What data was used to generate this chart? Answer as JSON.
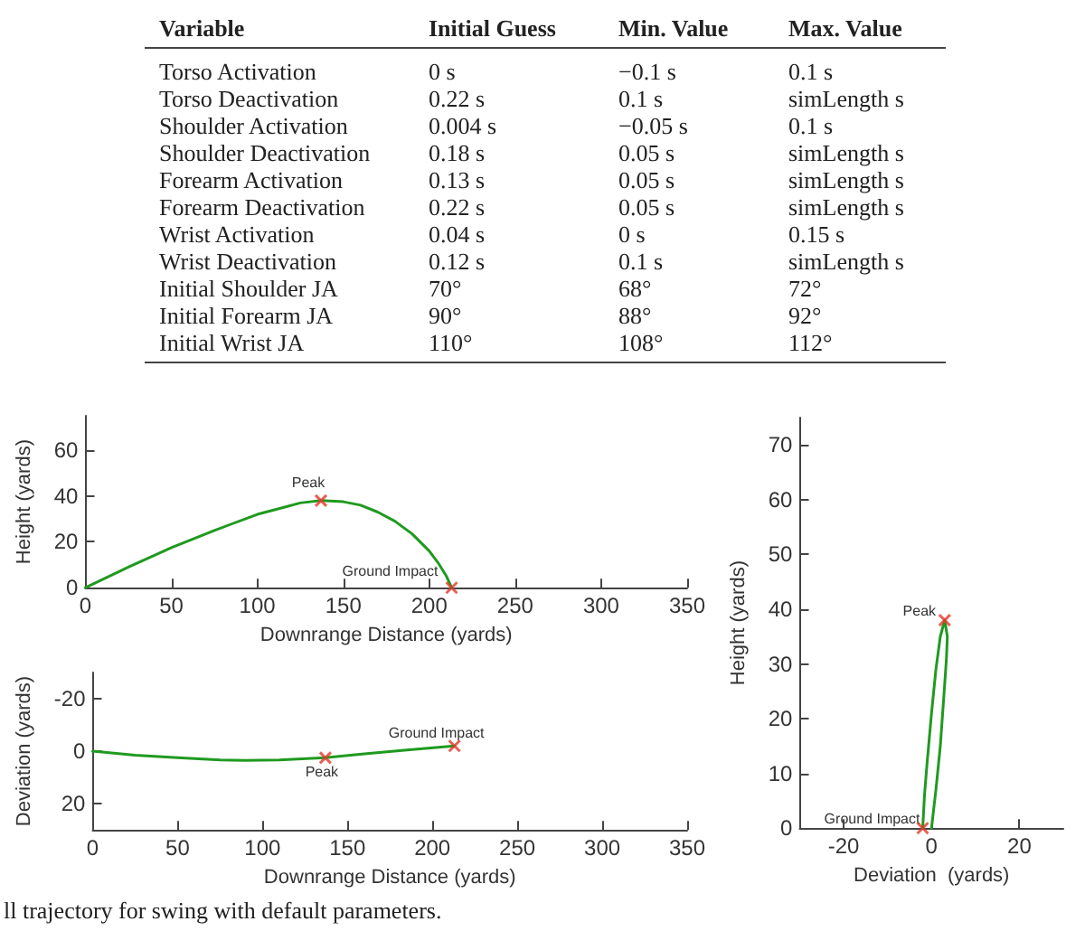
{
  "chart_data": [
    {
      "type": "other",
      "annotations": [
        "Variable",
        "Initial Guess",
        "Min. Value",
        "Max. Value",
        "Torso Activation",
        "0 s",
        "−0.1 s",
        "0.1 s",
        "Torso Deactivation",
        "0.22 s",
        "0.1 s",
        "simLength s",
        "Shoulder Activation",
        "0.004 s",
        "−0.05 s",
        "0.1 s",
        "Shoulder Deactivation",
        "0.18 s",
        "0.05 s",
        "simLength s",
        "Forearm Activation",
        "0.13 s",
        "0.05 s",
        "simLength s",
        "Forearm Deactivation",
        "0.22 s",
        "0.05 s",
        "simLength s",
        "Wrist Activation",
        "0.04 s",
        "0 s",
        "0.15 s",
        "Wrist Deactivation",
        "0.12 s",
        "0.1 s",
        "simLength s",
        "Initial Shoulder JA",
        "70°",
        "68°",
        "72°",
        "Initial Forearm JA",
        "90°",
        "88°",
        "92°",
        "Initial Wrist JA",
        "110°",
        "108°",
        "112°"
      ]
    },
    {
      "type": "line",
      "xlabel": "Downrange Distance (yards)",
      "ylabel": "Height (yards)",
      "xlim": [
        0,
        350
      ],
      "xticks": [
        0,
        50,
        100,
        150,
        200,
        250,
        300,
        350
      ],
      "ylim": [
        0,
        75
      ],
      "yticks": [
        0,
        20,
        40,
        60
      ],
      "grid": false,
      "series": [
        {
          "type": "line",
          "color": "#1f9a1f",
          "marker": "none",
          "x": [
            0,
            25,
            50,
            75,
            100,
            115,
            125,
            137,
            150,
            160,
            170,
            180,
            190,
            200,
            205,
            210,
            213
          ],
          "values": [
            0,
            9,
            17.5,
            25,
            32,
            35,
            37,
            38,
            37.5,
            36,
            33,
            29,
            23.5,
            16,
            11,
            5,
            0
          ]
        },
        {
          "type": "scatter",
          "color": "#e0392b",
          "marker": "cross",
          "x": [
            137,
            213
          ],
          "values": [
            38,
            0
          ]
        }
      ],
      "annotations": [
        {
          "text": "Peak",
          "x": 137,
          "y": 38
        },
        {
          "text": "Ground Impact",
          "x": 213,
          "y": 0
        }
      ]
    },
    {
      "type": "line",
      "xlabel": "Downrange Distance (yards)",
      "ylabel": "Deviation (yards)",
      "xlim": [
        0,
        350
      ],
      "xticks": [
        0,
        50,
        100,
        150,
        200,
        250,
        300,
        350
      ],
      "ylim": [
        30,
        -30
      ],
      "yticks": [
        -20,
        0,
        20
      ],
      "grid": false,
      "series": [
        {
          "type": "line",
          "color": "#1f9a1f",
          "marker": "none",
          "x": [
            0,
            25,
            50,
            75,
            90,
            110,
            137,
            160,
            185,
            213
          ],
          "values": [
            0,
            1.5,
            2.5,
            3.3,
            3.5,
            3.3,
            2.5,
            1,
            -0.5,
            -2
          ]
        },
        {
          "type": "scatter",
          "color": "#e0392b",
          "marker": "cross",
          "x": [
            137,
            213
          ],
          "values": [
            2.5,
            -2
          ]
        }
      ],
      "annotations": [
        {
          "text": "Peak",
          "x": 137,
          "y": 2.5
        },
        {
          "text": "Ground Impact",
          "x": 213,
          "y": -2
        }
      ]
    },
    {
      "type": "line",
      "xlabel": "Deviation  (yards)",
      "ylabel": "Height (yards)",
      "xlim": [
        -30,
        30
      ],
      "xticks": [
        -20,
        0,
        20
      ],
      "ylim": [
        0,
        75
      ],
      "yticks": [
        0,
        10,
        20,
        30,
        40,
        50,
        60,
        70
      ],
      "grid": false,
      "series": [
        {
          "type": "line",
          "color": "#1f9a1f",
          "marker": "none",
          "x": [
            0,
            1,
            2,
            2.8,
            3.4,
            3.6,
            3,
            2,
            1,
            0,
            -1,
            -1.6,
            -2
          ],
          "values": [
            0,
            7,
            15,
            24,
            31,
            35,
            38,
            35,
            29,
            21,
            12,
            6,
            0
          ]
        },
        {
          "type": "scatter",
          "color": "#e0392b",
          "marker": "cross",
          "x": [
            3,
            -2
          ],
          "values": [
            38,
            0
          ]
        }
      ],
      "annotations": [
        {
          "text": "Peak",
          "x": 3,
          "y": 38
        },
        {
          "text": "Ground Impact",
          "x": -2,
          "y": 0
        },
        "ll trajectory for swing with default parameters."
      ]
    }
  ]
}
